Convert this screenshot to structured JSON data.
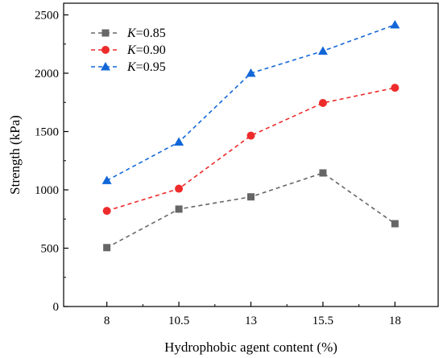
{
  "chart_data": {
    "type": "line",
    "xlabel": "Hydrophobic agent content (%)",
    "ylabel": "Strength (kPa)",
    "categories": [
      "8",
      "10.5",
      "13",
      "15.5",
      "18"
    ],
    "xlim": [
      6.5,
      19.5
    ],
    "ylim": [
      0,
      2600
    ],
    "yticks": [
      0,
      500,
      1000,
      1500,
      2000,
      2500
    ],
    "xticks": [
      8,
      10.5,
      13,
      15.5,
      18
    ],
    "grid": false,
    "legend_position": "top-left",
    "series": [
      {
        "name_var": "K",
        "name_value": "=0.85",
        "x": [
          8,
          10.5,
          13,
          15.5,
          18
        ],
        "values": [
          505,
          835,
          940,
          1145,
          710
        ],
        "color": "#666666",
        "marker": "square",
        "line": "dashed"
      },
      {
        "name_var": "K",
        "name_value": "=0.90",
        "x": [
          8,
          10.5,
          13,
          15.5,
          18
        ],
        "values": [
          820,
          1010,
          1465,
          1745,
          1875
        ],
        "color": "#ee2b2b",
        "marker": "circle",
        "line": "dashed"
      },
      {
        "name_var": "K",
        "name_value": "=0.95",
        "x": [
          8,
          10.5,
          13,
          15.5,
          18
        ],
        "values": [
          1080,
          1410,
          2000,
          2190,
          2415
        ],
        "color": "#1167d8",
        "marker": "triangle",
        "line": "dashed"
      }
    ]
  }
}
